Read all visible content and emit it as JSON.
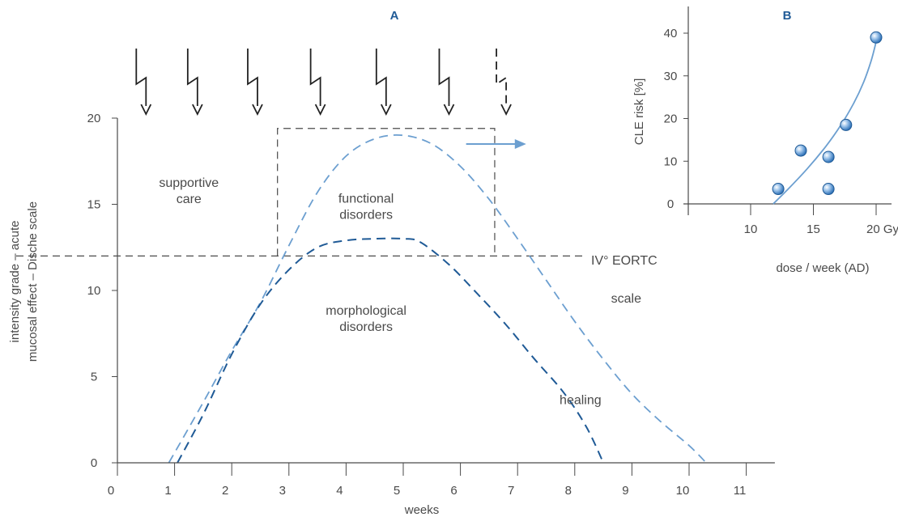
{
  "chart_data": [
    {
      "panel": "A",
      "type": "line",
      "xlabel": "weeks",
      "ylabel_lines": [
        "intensity grade – acute",
        "mucosal effect – Dische scale"
      ],
      "xlim": [
        0,
        11.5
      ],
      "ylim": [
        0,
        20
      ],
      "x_ticks": [
        0,
        1,
        2,
        3,
        4,
        5,
        6,
        7,
        8,
        9,
        10,
        11
      ],
      "y_ticks": [
        0,
        5,
        10,
        15,
        20
      ],
      "threshold": {
        "y": 12,
        "label": "IV° EORTC"
      },
      "regions": [
        {
          "label_lines": [
            "supportive",
            "care"
          ],
          "anchor": [
            1.25,
            16.0
          ]
        },
        {
          "label_lines": [
            "functional",
            "disorders"
          ],
          "anchor": [
            4.35,
            15.1
          ]
        },
        {
          "label_lines": [
            "morphological",
            "disorders"
          ],
          "anchor": [
            4.35,
            8.6
          ]
        },
        {
          "label_lines": [
            "scale"
          ],
          "anchor": [
            8.9,
            9.3
          ]
        },
        {
          "label_lines": [
            "healing"
          ],
          "anchor": [
            8.1,
            3.4
          ]
        }
      ],
      "box": {
        "x": [
          2.8,
          6.6
        ],
        "y": [
          12,
          19.4
        ]
      },
      "series": [
        {
          "color": "#6c9fd0",
          "style": "dashed",
          "points": [
            [
              0.9,
              0
            ],
            [
              1.5,
              3.5
            ],
            [
              2.0,
              6.5
            ],
            [
              2.5,
              9.3
            ],
            [
              3.0,
              12.6
            ],
            [
              3.5,
              15.7
            ],
            [
              4.0,
              17.8
            ],
            [
              4.5,
              18.8
            ],
            [
              5.0,
              19.0
            ],
            [
              5.5,
              18.5
            ],
            [
              6.0,
              17.2
            ],
            [
              6.5,
              15.3
            ],
            [
              7.0,
              13.0
            ],
            [
              7.5,
              10.6
            ],
            [
              8.0,
              8.2
            ],
            [
              8.5,
              6.0
            ],
            [
              9.0,
              4.0
            ],
            [
              9.5,
              2.4
            ],
            [
              10.0,
              1.0
            ],
            [
              10.3,
              0
            ]
          ]
        },
        {
          "color": "#1f5a96",
          "style": "dashed",
          "points": [
            [
              1.05,
              0
            ],
            [
              1.5,
              2.8
            ],
            [
              2.0,
              6.3
            ],
            [
              2.5,
              9.2
            ],
            [
              3.0,
              11.2
            ],
            [
              3.5,
              12.5
            ],
            [
              4.0,
              12.9
            ],
            [
              4.5,
              13.0
            ],
            [
              5.0,
              13.0
            ],
            [
              5.3,
              12.8
            ],
            [
              5.8,
              11.5
            ],
            [
              6.3,
              9.8
            ],
            [
              6.8,
              8.0
            ],
            [
              7.3,
              6.0
            ],
            [
              7.8,
              4.1
            ],
            [
              8.2,
              2.1
            ],
            [
              8.5,
              0
            ]
          ]
        }
      ],
      "fraction_arrows": {
        "x": [
          0.5,
          1.4,
          2.45,
          3.55,
          4.7,
          5.8
        ],
        "dashed_x": 6.8
      },
      "arrow_to_panel_b": {
        "from": [
          6.1,
          18.5
        ],
        "to": [
          7.15,
          18.5
        ]
      }
    },
    {
      "panel": "B",
      "type": "scatter",
      "xlabel": "dose / week (AD)",
      "ylabel": "CLE risk [%]",
      "xlim": [
        6,
        21.5
      ],
      "ylim": [
        0,
        45
      ],
      "x_ticks": [
        10,
        15,
        20
      ],
      "x_tick_labels": [
        "10",
        "15",
        "20 Gy"
      ],
      "y_ticks": [
        0,
        10,
        20,
        30,
        40
      ],
      "points": [
        [
          12.2,
          3.5
        ],
        [
          14.0,
          12.5
        ],
        [
          16.2,
          11.0
        ],
        [
          16.2,
          3.5
        ],
        [
          17.6,
          18.5
        ],
        [
          20.0,
          39.0
        ]
      ],
      "fit_curve": [
        [
          11.8,
          0
        ],
        [
          13.0,
          3.5
        ],
        [
          14.5,
          8.2
        ],
        [
          16.0,
          13.5
        ],
        [
          17.2,
          18.5
        ],
        [
          18.2,
          23.5
        ],
        [
          19.0,
          28.5
        ],
        [
          19.6,
          33.5
        ],
        [
          20.0,
          38.0
        ]
      ],
      "curve_color": "#6c9fd0",
      "point_color": "#4f8fd0"
    }
  ]
}
